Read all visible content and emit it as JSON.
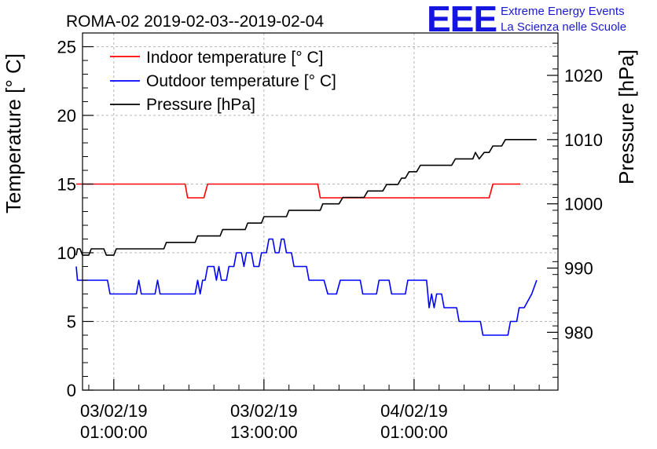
{
  "chart_data": {
    "type": "line",
    "title": "ROMA-02 2019-02-03--2019-02-04",
    "logo": {
      "mark": "EEE",
      "line1": "Extreme Energy Events",
      "line2": "La Scienza nelle Scuole"
    },
    "ylabel_left": "Temperature [° C]",
    "ylabel_right": "Pressure [hPa]",
    "ylim_left": [
      0,
      26
    ],
    "ylim_right": [
      971,
      1026.6
    ],
    "xlim_hours": [
      -6.5,
      31.5
    ],
    "left_ticks": [
      "0",
      "5",
      "10",
      "15",
      "20",
      "25"
    ],
    "right_ticks": [
      "980",
      "990",
      "1000",
      "1010",
      "1020"
    ],
    "x_ticks": [
      {
        "date": "03/02/19",
        "time": "01:00:00",
        "hour": -4
      },
      {
        "date": "03/02/19",
        "time": "13:00:00",
        "hour": 8
      },
      {
        "date": "04/02/19",
        "time": "01:00:00",
        "hour": 20
      }
    ],
    "grid": true,
    "legend_position": "top-left",
    "series": [
      {
        "name": "Indoor temperature [° C]",
        "axis": "left",
        "color": "#ff0000",
        "points": [
          [
            -7,
            15
          ],
          [
            1.7,
            15
          ],
          [
            1.9,
            14
          ],
          [
            3.2,
            14
          ],
          [
            3.5,
            15
          ],
          [
            12.3,
            15
          ],
          [
            12.5,
            14
          ],
          [
            26,
            14
          ],
          [
            26.3,
            15
          ],
          [
            28.5,
            15
          ]
        ]
      },
      {
        "name": "Outdoor temperature [° C]",
        "axis": "left",
        "color": "#0000ff",
        "points": [
          [
            -7,
            9
          ],
          [
            -6.9,
            8
          ],
          [
            -4.5,
            8
          ],
          [
            -4.3,
            7
          ],
          [
            -2.2,
            7
          ],
          [
            -2,
            8
          ],
          [
            -1.8,
            7
          ],
          [
            -0.7,
            7
          ],
          [
            -0.5,
            8
          ],
          [
            -0.3,
            7
          ],
          [
            2.5,
            7
          ],
          [
            2.7,
            8
          ],
          [
            2.9,
            7
          ],
          [
            3.1,
            8
          ],
          [
            3.3,
            8
          ],
          [
            3.5,
            9
          ],
          [
            4,
            9
          ],
          [
            4.2,
            8
          ],
          [
            4.4,
            9
          ],
          [
            4.6,
            8
          ],
          [
            5,
            8
          ],
          [
            5.2,
            9
          ],
          [
            5.6,
            9
          ],
          [
            5.8,
            10
          ],
          [
            6.2,
            10
          ],
          [
            6.4,
            9
          ],
          [
            6.6,
            10
          ],
          [
            7,
            10
          ],
          [
            7.2,
            9
          ],
          [
            7.6,
            9
          ],
          [
            7.8,
            10
          ],
          [
            8.2,
            10
          ],
          [
            8.4,
            11
          ],
          [
            8.7,
            11
          ],
          [
            8.9,
            10
          ],
          [
            9.2,
            10
          ],
          [
            9.4,
            11
          ],
          [
            9.6,
            11
          ],
          [
            9.8,
            10
          ],
          [
            10.2,
            10
          ],
          [
            10.4,
            9
          ],
          [
            11.4,
            9
          ],
          [
            11.6,
            8
          ],
          [
            12.6,
            8
          ],
          [
            12.8,
            8
          ],
          [
            13.1,
            7
          ],
          [
            13.8,
            7
          ],
          [
            14.1,
            8
          ],
          [
            15.7,
            8
          ],
          [
            15.9,
            7
          ],
          [
            17,
            7
          ],
          [
            17.2,
            8
          ],
          [
            18,
            8
          ],
          [
            18.2,
            7
          ],
          [
            19.3,
            7
          ],
          [
            19.5,
            8
          ],
          [
            21,
            8
          ],
          [
            21.2,
            6
          ],
          [
            21.4,
            7
          ],
          [
            21.6,
            6
          ],
          [
            21.8,
            7
          ],
          [
            22.2,
            7
          ],
          [
            22.4,
            6
          ],
          [
            23.4,
            6
          ],
          [
            23.6,
            5
          ],
          [
            25.3,
            5
          ],
          [
            25.5,
            4
          ],
          [
            27.5,
            4
          ],
          [
            27.7,
            5
          ],
          [
            28.2,
            5
          ],
          [
            28.4,
            6
          ],
          [
            28.8,
            6
          ],
          [
            29.1,
            6.5
          ],
          [
            29.4,
            7
          ],
          [
            29.8,
            8
          ]
        ]
      },
      {
        "name": "Pressure [hPa]",
        "axis": "right",
        "color": "#000000",
        "points": [
          [
            -7,
            992
          ],
          [
            -6.9,
            993
          ],
          [
            -6.7,
            993
          ],
          [
            -6.5,
            992
          ],
          [
            -6,
            992
          ],
          [
            -5.8,
            993
          ],
          [
            -4.8,
            993
          ],
          [
            -4.6,
            992
          ],
          [
            -4,
            992
          ],
          [
            -3.8,
            993
          ],
          [
            0,
            993
          ],
          [
            0.2,
            994
          ],
          [
            2.5,
            994
          ],
          [
            2.7,
            995
          ],
          [
            4.5,
            995
          ],
          [
            4.7,
            996
          ],
          [
            6.5,
            996
          ],
          [
            6.7,
            997
          ],
          [
            7.8,
            997
          ],
          [
            8,
            998
          ],
          [
            9.8,
            998
          ],
          [
            10,
            999
          ],
          [
            12.5,
            999
          ],
          [
            12.7,
            1000
          ],
          [
            14,
            1000
          ],
          [
            14.3,
            1001
          ],
          [
            16,
            1001
          ],
          [
            16.3,
            1002
          ],
          [
            17.5,
            1002
          ],
          [
            17.8,
            1003
          ],
          [
            18.7,
            1003
          ],
          [
            19,
            1004
          ],
          [
            19.3,
            1004
          ],
          [
            19.6,
            1005
          ],
          [
            20.2,
            1005
          ],
          [
            20.5,
            1006
          ],
          [
            23,
            1006
          ],
          [
            23.3,
            1007
          ],
          [
            24.7,
            1007
          ],
          [
            24.9,
            1008
          ],
          [
            25.2,
            1007
          ],
          [
            25.6,
            1008
          ],
          [
            26,
            1008
          ],
          [
            26.3,
            1009
          ],
          [
            27,
            1009
          ],
          [
            27.3,
            1010
          ],
          [
            29.8,
            1010
          ]
        ]
      }
    ]
  }
}
